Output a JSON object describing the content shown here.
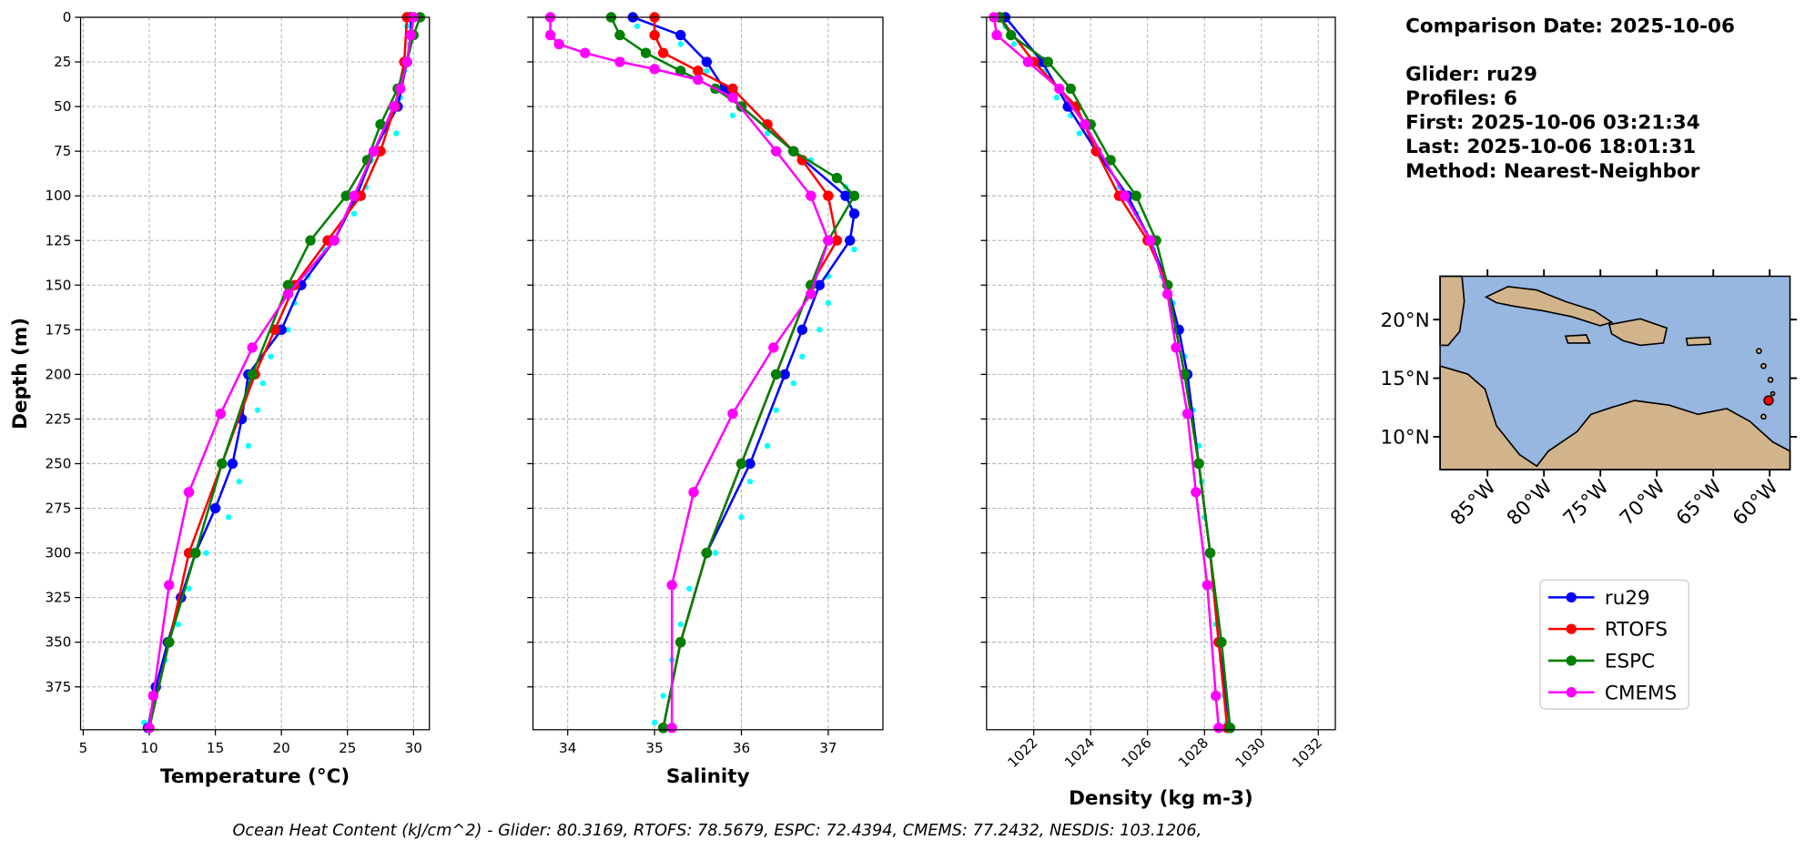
{
  "chart_data": [
    {
      "type": "line",
      "xlabel": "Temperature (°C)",
      "ylabel": "Depth (m)",
      "xlim": [
        4.8,
        31.2
      ],
      "ylim": [
        399,
        0
      ],
      "xticks": [
        5,
        10,
        15,
        20,
        25,
        30
      ],
      "yticks": [
        0,
        25,
        50,
        75,
        100,
        125,
        150,
        175,
        200,
        225,
        250,
        275,
        300,
        325,
        350,
        375
      ],
      "ytick_labels": true,
      "grid": true,
      "series": [
        {
          "color": "#00ffff",
          "marker": "small",
          "x": [
            29.5,
            29.7,
            29.3,
            29.0,
            28.3,
            28.7,
            26.8,
            26.4,
            25.5,
            23.2,
            22.0,
            21.0,
            20.5,
            19.2,
            18.6,
            18.2,
            17.5,
            16.8,
            16.0,
            14.3,
            13.0,
            12.2,
            11.2,
            10.4,
            9.6
          ],
          "y": [
            5,
            15,
            30,
            45,
            55,
            65,
            80,
            95,
            110,
            130,
            145,
            160,
            175,
            190,
            205,
            220,
            240,
            260,
            280,
            300,
            320,
            340,
            360,
            380,
            395
          ]
        },
        {
          "name": "ru29",
          "color": "#0000ff",
          "x": [
            29.8,
            29.8,
            29.5,
            28.8,
            27.0,
            25.7,
            24.0,
            21.5,
            20.0,
            17.5,
            17.0,
            16.3,
            15.0,
            13.5,
            12.4,
            11.4,
            10.5,
            9.9
          ],
          "y": [
            0,
            10,
            25,
            50,
            75,
            100,
            125,
            150,
            175,
            200,
            225,
            250,
            275,
            300,
            325,
            350,
            375,
            398
          ]
        },
        {
          "name": "RTOFS",
          "color": "#ff0000",
          "x": [
            29.5,
            29.3,
            28.6,
            27.5,
            26.0,
            23.5,
            21.0,
            19.5,
            18.0,
            15.5,
            13.0,
            11.5,
            10.0
          ],
          "y": [
            0,
            25,
            50,
            75,
            100,
            125,
            150,
            175,
            200,
            250,
            300,
            350,
            398
          ]
        },
        {
          "name": "ESPC",
          "color": "#008000",
          "x": [
            30.5,
            30.0,
            29.5,
            28.8,
            27.5,
            26.5,
            24.9,
            22.2,
            20.5,
            17.8,
            15.5,
            13.5,
            11.5,
            10.0
          ],
          "y": [
            0,
            10,
            25,
            40,
            60,
            80,
            100,
            125,
            150,
            200,
            250,
            300,
            350,
            398
          ]
        },
        {
          "name": "CMEMS",
          "color": "#ff00ff",
          "x": [
            30.0,
            29.8,
            29.5,
            29.0,
            28.5,
            27.0,
            25.5,
            24.0,
            20.5,
            17.8,
            15.4,
            13.0,
            11.5,
            10.3,
            10.0
          ],
          "y": [
            0,
            10,
            25,
            40,
            50,
            75,
            100,
            125,
            155,
            185,
            222,
            266,
            318,
            380,
            398
          ]
        }
      ]
    },
    {
      "type": "line",
      "xlabel": "Salinity",
      "xlim": [
        33.6,
        37.63
      ],
      "ylim": [
        399,
        0
      ],
      "xticks": [
        34,
        35,
        36,
        37
      ],
      "yticks": [
        0,
        25,
        50,
        75,
        100,
        125,
        150,
        175,
        200,
        225,
        250,
        275,
        300,
        325,
        350,
        375
      ],
      "ytick_labels": false,
      "grid": true,
      "series": [
        {
          "color": "#00ffff",
          "marker": "small",
          "x": [
            34.8,
            35.3,
            35.6,
            35.9,
            35.9,
            36.3,
            36.8,
            37.2,
            37.3,
            37.3,
            37.0,
            37.0,
            36.9,
            36.7,
            36.6,
            36.4,
            36.3,
            36.1,
            36.0,
            35.7,
            35.4,
            35.3,
            35.2,
            35.1,
            35.0
          ],
          "y": [
            5,
            15,
            30,
            45,
            55,
            65,
            80,
            95,
            110,
            130,
            145,
            160,
            175,
            190,
            205,
            220,
            240,
            260,
            280,
            300,
            320,
            340,
            360,
            380,
            395
          ]
        },
        {
          "name": "ru29",
          "color": "#0000ff",
          "x": [
            34.75,
            35.3,
            35.6,
            35.8,
            36.0,
            36.6,
            37.2,
            37.3,
            37.25,
            36.9,
            36.7,
            36.5,
            36.1,
            35.6,
            35.3,
            35.1
          ],
          "y": [
            0,
            10,
            25,
            40,
            50,
            75,
            100,
            110,
            125,
            150,
            175,
            200,
            250,
            300,
            350,
            398
          ]
        },
        {
          "name": "RTOFS",
          "color": "#ff0000",
          "x": [
            35.0,
            35.0,
            35.1,
            35.5,
            35.9,
            36.3,
            36.7,
            37.0,
            37.1,
            36.8,
            36.4,
            36.0,
            35.6,
            35.3,
            35.1
          ],
          "y": [
            0,
            10,
            20,
            30,
            40,
            60,
            80,
            100,
            125,
            150,
            200,
            250,
            300,
            350,
            398
          ]
        },
        {
          "name": "ESPC",
          "color": "#008000",
          "x": [
            34.5,
            34.6,
            34.9,
            35.3,
            35.7,
            36.0,
            36.6,
            37.1,
            37.3,
            37.0,
            36.8,
            36.4,
            36.0,
            35.6,
            35.3,
            35.1
          ],
          "y": [
            0,
            10,
            20,
            30,
            40,
            50,
            75,
            90,
            100,
            125,
            150,
            200,
            250,
            300,
            350,
            398
          ]
        },
        {
          "name": "CMEMS",
          "color": "#ff00ff",
          "x": [
            33.8,
            33.8,
            33.9,
            34.2,
            34.6,
            35.0,
            35.5,
            35.9,
            36.4,
            36.8,
            37.0,
            36.8,
            36.37,
            35.9,
            35.45,
            35.2,
            35.2
          ],
          "y": [
            0,
            10,
            15,
            20,
            25,
            29,
            35,
            45,
            75,
            100,
            125,
            155,
            185,
            222,
            266,
            318,
            398
          ]
        }
      ]
    },
    {
      "type": "line",
      "xlabel": "Density (kg m-3)",
      "xlim": [
        1020.34,
        1032.6
      ],
      "ylim": [
        399,
        0
      ],
      "xticks": [
        1022,
        1024,
        1026,
        1028,
        1030,
        1032
      ],
      "yticks": [
        0,
        25,
        50,
        75,
        100,
        125,
        150,
        175,
        200,
        225,
        250,
        275,
        300,
        325,
        350,
        375
      ],
      "ytick_labels": false,
      "grid": true,
      "xtick_rotation": 45,
      "series": [
        {
          "color": "#00ffff",
          "marker": "small",
          "x": [
            1021.0,
            1021.3,
            1022.4,
            1022.8,
            1023.3,
            1023.6,
            1024.5,
            1025.0,
            1025.6,
            1026.2,
            1026.5,
            1026.9,
            1027.1,
            1027.3,
            1027.4,
            1027.6,
            1027.8,
            1027.9,
            1028.0,
            1028.2,
            1028.3,
            1028.4,
            1028.6,
            1028.7,
            1028.8
          ],
          "y": [
            5,
            15,
            30,
            45,
            55,
            65,
            80,
            95,
            110,
            130,
            145,
            160,
            175,
            190,
            205,
            220,
            240,
            260,
            280,
            300,
            320,
            340,
            360,
            380,
            395
          ]
        },
        {
          "name": "ru29",
          "color": "#0000ff",
          "x": [
            1021.0,
            1022.3,
            1023.2,
            1024.2,
            1025.3,
            1026.1,
            1026.7,
            1027.1,
            1027.4,
            1027.8,
            1028.2,
            1028.5,
            1028.9
          ],
          "y": [
            0,
            25,
            50,
            75,
            100,
            125,
            150,
            175,
            200,
            250,
            300,
            350,
            398
          ]
        },
        {
          "name": "RTOFS",
          "color": "#ff0000",
          "x": [
            1020.8,
            1022.0,
            1023.5,
            1024.2,
            1025.0,
            1026.0,
            1026.7,
            1027.3,
            1027.8,
            1028.2,
            1028.5,
            1028.8
          ],
          "y": [
            0,
            25,
            50,
            75,
            100,
            125,
            150,
            200,
            250,
            300,
            350,
            398
          ]
        },
        {
          "name": "ESPC",
          "color": "#008000",
          "x": [
            1020.8,
            1021.2,
            1022.5,
            1023.3,
            1024.0,
            1024.7,
            1025.6,
            1026.3,
            1026.7,
            1027.3,
            1027.8,
            1028.2,
            1028.6,
            1028.9
          ],
          "y": [
            0,
            10,
            25,
            40,
            60,
            80,
            100,
            125,
            150,
            200,
            250,
            300,
            350,
            398
          ]
        },
        {
          "name": "CMEMS",
          "color": "#ff00ff",
          "x": [
            1020.6,
            1020.7,
            1021.8,
            1022.9,
            1023.8,
            1025.2,
            1026.1,
            1026.7,
            1027.0,
            1027.4,
            1027.7,
            1028.1,
            1028.4,
            1028.5
          ],
          "y": [
            0,
            10,
            25,
            40,
            60,
            100,
            125,
            155,
            185,
            222,
            266,
            318,
            380,
            398
          ]
        }
      ]
    }
  ],
  "info": {
    "lines": [
      "Comparison Date: 2025-10-06",
      "Glider: ru29",
      "Profiles: 6",
      "First: 2025-10-06 03:21:34",
      "Last: 2025-10-06 18:01:31",
      "Method: Nearest-Neighbor"
    ]
  },
  "map": {
    "lonlim": [
      -89.2,
      -58.2
    ],
    "latlim": [
      7.2,
      23.7
    ],
    "lonticks": [
      {
        "value": -85,
        "label": "85°W"
      },
      {
        "value": -80,
        "label": "80°W"
      },
      {
        "value": -75,
        "label": "75°W"
      },
      {
        "value": -70,
        "label": "70°W"
      },
      {
        "value": -65,
        "label": "65°W"
      },
      {
        "value": -60,
        "label": "60°W"
      }
    ],
    "latticks": [
      {
        "value": 10,
        "label": "10°N"
      },
      {
        "value": 15,
        "label": "15°N"
      },
      {
        "value": 20,
        "label": "20°N"
      }
    ],
    "glider_position": {
      "lon": -60.1,
      "lat": 13.1
    }
  },
  "footer": "Ocean Heat Content (kJ/cm^2) - Glider: 80.3169,  RTOFS: 78.5679,  ESPC: 72.4394,  CMEMS: 77.2432,  NESDIS: 103.1206,"
}
